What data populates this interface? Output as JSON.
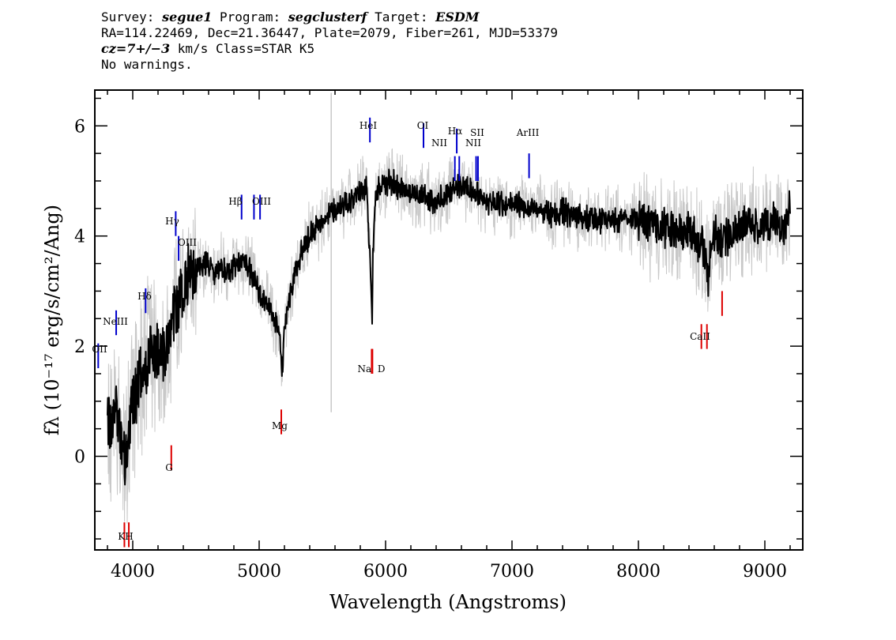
{
  "header": {
    "line1": {
      "survey_label": "Survey: ",
      "survey": "segue1",
      "program_label": " Program: ",
      "program": "segclusterf",
      "target_label": " Target: ",
      "target": "ESDM"
    },
    "line2": "RA=114.22469, Dec=21.36447, Plate=2079, Fiber=261, MJD=53379",
    "line3": {
      "cz": "cz=7+/−3",
      "rest": " km/s Class=STAR K5"
    },
    "line4": "No warnings."
  },
  "chart_data": {
    "type": "line",
    "xlabel": "Wavelength (Angstroms)",
    "ylabel": "fλ (10⁻¹⁷ erg/s/cm²/Ang)",
    "xlim": [
      3700,
      9300
    ],
    "ylim": [
      -1.7,
      6.65
    ],
    "x_ticks": [
      4000,
      5000,
      6000,
      7000,
      8000,
      9000
    ],
    "y_ticks": [
      0,
      2,
      4,
      6
    ],
    "series": [
      {
        "role": "flux",
        "color": "#000000",
        "x": [
          3800,
          3830,
          3860,
          3900,
          3940,
          3970,
          4000,
          4050,
          4100,
          4150,
          4200,
          4250,
          4300,
          4330,
          4360,
          4400,
          4450,
          4500,
          4550,
          4600,
          4650,
          4700,
          4750,
          4800,
          4850,
          4900,
          4950,
          5000,
          5050,
          5100,
          5150,
          5170,
          5180,
          5200,
          5250,
          5300,
          5350,
          5400,
          5450,
          5500,
          5550,
          5600,
          5650,
          5700,
          5750,
          5800,
          5850,
          5880,
          5890,
          5895,
          5900,
          5920,
          5950,
          6000,
          6050,
          6100,
          6150,
          6200,
          6250,
          6300,
          6350,
          6400,
          6450,
          6500,
          6550,
          6600,
          6650,
          6700,
          6750,
          6800,
          6900,
          7000,
          7100,
          7200,
          7300,
          7400,
          7500,
          7600,
          7700,
          7800,
          7900,
          8000,
          8100,
          8200,
          8300,
          8400,
          8450,
          8500,
          8540,
          8550,
          8560,
          8600,
          8650,
          8660,
          8700,
          8800,
          8900,
          9000,
          9100,
          9150,
          9200
        ],
        "y": [
          0.6,
          0.5,
          1.0,
          0.3,
          0.0,
          0.4,
          1.0,
          1.3,
          1.7,
          2.0,
          1.9,
          1.9,
          2.3,
          2.6,
          2.8,
          3.1,
          3.3,
          3.4,
          3.45,
          3.5,
          3.35,
          3.4,
          3.3,
          3.45,
          3.55,
          3.5,
          3.3,
          3.0,
          2.8,
          2.6,
          2.3,
          1.9,
          1.5,
          2.3,
          3.0,
          3.5,
          3.75,
          4.0,
          4.1,
          4.3,
          4.4,
          4.5,
          4.55,
          4.6,
          4.7,
          4.8,
          4.85,
          3.5,
          2.6,
          2.5,
          3.7,
          4.7,
          4.9,
          4.95,
          5.0,
          4.9,
          4.8,
          4.85,
          4.7,
          4.75,
          4.7,
          4.6,
          4.7,
          4.8,
          4.9,
          4.95,
          4.85,
          4.8,
          4.7,
          4.65,
          4.6,
          4.55,
          4.55,
          4.5,
          4.4,
          4.45,
          4.35,
          4.3,
          4.3,
          4.3,
          4.3,
          4.3,
          4.2,
          4.15,
          4.1,
          4.1,
          3.95,
          3.8,
          3.6,
          3.1,
          3.6,
          4.0,
          3.9,
          3.8,
          4.0,
          4.2,
          4.25,
          4.2,
          4.3,
          4.1,
          4.5
        ]
      },
      {
        "role": "error envelope",
        "color": "#c8c8c8"
      }
    ],
    "emission_lines": [
      {
        "label": "OII",
        "x": 3727,
        "y": 1.6
      },
      {
        "label": "NeIII",
        "x": 3869,
        "y": 2.2
      },
      {
        "label": "Hδ",
        "x": 4102,
        "y": 2.6
      },
      {
        "label": "Hγ",
        "x": 4340,
        "y": 4.0
      },
      {
        "label": "OIII",
        "x": 4363,
        "y": 3.55
      },
      {
        "label": "Hβ",
        "x": 4861,
        "y": 4.3
      },
      {
        "label": "OIII",
        "x": 4959,
        "y": 4.3
      },
      {
        "label": "OIII",
        "x": 5007,
        "y": 4.3
      },
      {
        "label": "HeI",
        "x": 5876,
        "y": 5.7
      },
      {
        "label": "OI",
        "x": 6300,
        "y": 5.6
      },
      {
        "label": "NII",
        "x": 6548,
        "y": 5.0
      },
      {
        "label": "Hα",
        "x": 6563,
        "y": 5.5
      },
      {
        "label": "NII",
        "x": 6583,
        "y": 5.0
      },
      {
        "label": "SII",
        "x": 6716,
        "y": 5.0
      },
      {
        "label": "SII",
        "x": 6731,
        "y": 5.0
      },
      {
        "label": "ArIII",
        "x": 7135,
        "y": 5.05
      }
    ],
    "absorption_lines": [
      {
        "label": "K",
        "x": 3934,
        "y": -1.2
      },
      {
        "label": "H",
        "x": 3969,
        "y": -1.2
      },
      {
        "label": "G",
        "x": 4305,
        "y": 0.2
      },
      {
        "label": "Mg",
        "x": 5175,
        "y": 0.85
      },
      {
        "label": "Na",
        "x": 5890,
        "y": 1.95
      },
      {
        "label": "D",
        "x": 5896,
        "y": 1.95
      },
      {
        "label": "CaII",
        "x": 8498,
        "y": 2.4
      },
      {
        "label": "CaII",
        "x": 8542,
        "y": 2.4
      },
      {
        "label": "CaII",
        "x": 8662,
        "y": 3.0
      }
    ],
    "label_texts": {
      "oii": "OII",
      "neiii": "NeIII",
      "hdelta": "Hδ",
      "hgamma": "Hγ",
      "oiii_a": "OIII",
      "hbeta": "Hβ",
      "oiii_b": "OIII",
      "hei": "HeI",
      "oi": "OI",
      "nii_a": "NII",
      "halpha": "Hα",
      "sii": "SII",
      "nii_b": "NII",
      "ariii": "ArIII",
      "kh": "KH",
      "g": "G",
      "mg": "Mg",
      "nad": "Na  D",
      "caii": "CaII"
    },
    "colors": {
      "emission": "#0000cc",
      "absorption": "#dd0000",
      "flux": "#000000",
      "error": "#c8c8c8"
    }
  }
}
